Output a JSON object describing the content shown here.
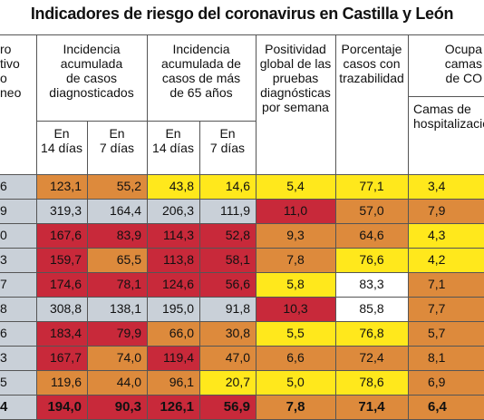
{
  "title": "Indicadores de riesgo del coronavirus en Castilla y León",
  "headers": {
    "col0": "ro\ntivo\no\nneo",
    "incidencia": "Incidencia\nacumulada\nde casos\ndiagnosticados",
    "incidencia65": "Incidencia\nacumulada de\ncasos de más\nde 65 años",
    "positividad": "Positividad\nglobal de las\npruebas\ndiagnósticas\npor semana",
    "trazabilidad": "Porcentaje\ncasos con\ntrazabilidad",
    "ocupacion": "Ocupa\ncamas\nde CO",
    "camas_hosp": "Camas de\nhospitalizació",
    "d14": "En\n14 días",
    "d7": "En\n7 días",
    "d14b": "En\n14 días",
    "d7b": "En\n7 días"
  },
  "colors": {
    "red": "#c8293a",
    "orange": "#dd8a3c",
    "yellow": "#ffe81c",
    "grey": "#c9d0d8",
    "white": "#ffffff",
    "first_col": "#c9d0d8"
  },
  "rows": [
    {
      "c0": "6",
      "c0b": "#c9d0d8",
      "v": [
        "123,1",
        "55,2",
        "43,8",
        "14,6",
        "5,4",
        "77,1",
        "3,4"
      ],
      "bg": [
        "orange",
        "orange",
        "yellow",
        "yellow",
        "yellow",
        "yellow",
        "yellow"
      ]
    },
    {
      "c0": "9",
      "c0b": "#c9d0d8",
      "v": [
        "319,3",
        "164,4",
        "206,3",
        "111,9",
        "11,0",
        "57,0",
        "7,9"
      ],
      "bg": [
        "grey",
        "grey",
        "grey",
        "grey",
        "red",
        "orange",
        "orange"
      ]
    },
    {
      "c0": "0",
      "c0b": "#c9d0d8",
      "v": [
        "167,6",
        "83,9",
        "114,3",
        "52,8",
        "9,3",
        "64,6",
        "4,3"
      ],
      "bg": [
        "red",
        "red",
        "red",
        "red",
        "orange",
        "orange",
        "yellow"
      ]
    },
    {
      "c0": "3",
      "c0b": "#c9d0d8",
      "v": [
        "159,7",
        "65,5",
        "113,8",
        "58,1",
        "7,8",
        "76,6",
        "4,2"
      ],
      "bg": [
        "red",
        "orange",
        "red",
        "red",
        "orange",
        "yellow",
        "yellow"
      ]
    },
    {
      "c0": "7",
      "c0b": "#c9d0d8",
      "v": [
        "174,6",
        "78,1",
        "124,6",
        "56,6",
        "5,8",
        "83,3",
        "7,1"
      ],
      "bg": [
        "red",
        "red",
        "red",
        "red",
        "yellow",
        "white",
        "orange"
      ]
    },
    {
      "c0": "8",
      "c0b": "#c9d0d8",
      "v": [
        "308,8",
        "138,1",
        "195,0",
        "91,8",
        "10,3",
        "85,8",
        "7,7"
      ],
      "bg": [
        "grey",
        "grey",
        "grey",
        "grey",
        "red",
        "white",
        "orange"
      ]
    },
    {
      "c0": "6",
      "c0b": "#c9d0d8",
      "v": [
        "183,4",
        "79,9",
        "66,0",
        "30,8",
        "5,5",
        "76,8",
        "5,7"
      ],
      "bg": [
        "red",
        "red",
        "orange",
        "orange",
        "yellow",
        "yellow",
        "orange"
      ]
    },
    {
      "c0": "3",
      "c0b": "#c9d0d8",
      "v": [
        "167,7",
        "74,0",
        "119,4",
        "47,0",
        "6,6",
        "72,4",
        "8,1"
      ],
      "bg": [
        "red",
        "orange",
        "red",
        "orange",
        "orange",
        "orange",
        "orange"
      ]
    },
    {
      "c0": "5",
      "c0b": "#c9d0d8",
      "v": [
        "119,6",
        "44,0",
        "96,1",
        "20,7",
        "5,0",
        "78,6",
        "6,9"
      ],
      "bg": [
        "orange",
        "orange",
        "orange",
        "yellow",
        "yellow",
        "yellow",
        "orange"
      ]
    },
    {
      "c0": "4",
      "c0b": "#c9d0d8",
      "v": [
        "194,0",
        "90,3",
        "126,1",
        "56,9",
        "7,8",
        "71,4",
        "6,4"
      ],
      "bg": [
        "red",
        "red",
        "red",
        "red",
        "orange",
        "orange",
        "orange"
      ],
      "bold": true
    }
  ]
}
